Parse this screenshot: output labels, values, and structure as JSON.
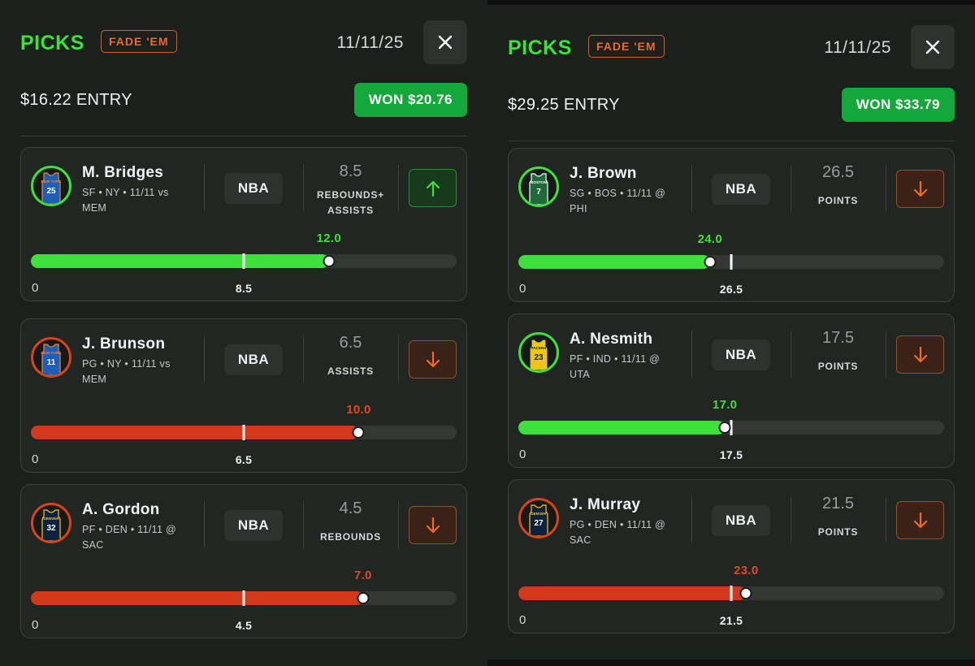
{
  "panels": [
    {
      "title": "PICKS",
      "badge": "FADE 'EM",
      "date": "11/11/25",
      "close_icon": "close-icon",
      "entry": "$16.22 ENTRY",
      "won": "WON $20.76",
      "picks": [
        {
          "name": "M. Bridges",
          "info": "SF • NY • 11/11 vs MEM",
          "league": "NBA",
          "line": "8.5",
          "stat": [
            "REBOUNDS+",
            "ASSISTS"
          ],
          "direction": "up",
          "actual": "12.0",
          "result": "hit",
          "jersey_number": "25",
          "jersey_text": "NEW YORK",
          "jersey_color": "#1d5fb7",
          "jersey_trim": "#f58426",
          "ring_color": "#3ee03a",
          "actual_fraction": 0.7,
          "line_fraction": 0.5,
          "axis_zero": "0",
          "axis_line": "8.5"
        },
        {
          "name": "J. Brunson",
          "info": "PG • NY • 11/11 vs MEM",
          "league": "NBA",
          "line": "6.5",
          "stat": [
            "ASSISTS"
          ],
          "direction": "down",
          "actual": "10.0",
          "result": "miss",
          "jersey_number": "11",
          "jersey_text": "NEW YORK",
          "jersey_color": "#1d5fb7",
          "jersey_trim": "#f58426",
          "ring_color": "#d9431c",
          "actual_fraction": 0.77,
          "line_fraction": 0.5,
          "axis_zero": "0",
          "axis_line": "6.5"
        },
        {
          "name": "A. Gordon",
          "info": "PF • DEN • 11/11 @ SAC",
          "league": "NBA",
          "line": "4.5",
          "stat": [
            "REBOUNDS"
          ],
          "direction": "down",
          "actual": "7.0",
          "result": "miss",
          "jersey_number": "32",
          "jersey_text": "DENVER",
          "jersey_color": "#0e2240",
          "jersey_trim": "#fec524",
          "ring_color": "#d9431c",
          "actual_fraction": 0.78,
          "line_fraction": 0.5,
          "axis_zero": "0",
          "axis_line": "4.5"
        }
      ]
    },
    {
      "title": "PICKS",
      "badge": "FADE 'EM",
      "date": "11/11/25",
      "close_icon": "close-icon",
      "entry": "$29.25 ENTRY",
      "won": "WON $33.79",
      "picks": [
        {
          "name": "J. Brown",
          "info": "SG • BOS • 11/11 @ PHI",
          "league": "NBA",
          "line": "26.5",
          "stat": [
            "POINTS"
          ],
          "direction": "down",
          "actual": "24.0",
          "result": "hit",
          "jersey_number": "7",
          "jersey_text": "BOSTON",
          "jersey_color": "#1f6a3c",
          "jersey_trim": "#ffffff",
          "ring_color": "#3ee03a",
          "actual_fraction": 0.45,
          "line_fraction": 0.5,
          "axis_zero": "0",
          "axis_line": "26.5"
        },
        {
          "name": "A. Nesmith",
          "info": "PF • IND • 11/11 @ UTA",
          "league": "NBA",
          "line": "17.5",
          "stat": [
            "POINTS"
          ],
          "direction": "down",
          "actual": "17.0",
          "result": "hit",
          "jersey_number": "23",
          "jersey_text": "PACERS",
          "jersey_color": "#f2c417",
          "jersey_trim": "#0c2340",
          "ring_color": "#3ee03a",
          "actual_fraction": 0.485,
          "line_fraction": 0.5,
          "axis_zero": "0",
          "axis_line": "17.5"
        },
        {
          "name": "J. Murray",
          "info": "PG • DEN • 11/11 @ SAC",
          "league": "NBA",
          "line": "21.5",
          "stat": [
            "POINTS"
          ],
          "direction": "down",
          "actual": "23.0",
          "result": "miss",
          "jersey_number": "27",
          "jersey_text": "DENVER",
          "jersey_color": "#0e2240",
          "jersey_trim": "#fec524",
          "ring_color": "#d9431c",
          "actual_fraction": 0.535,
          "line_fraction": 0.5,
          "axis_zero": "0",
          "axis_line": "21.5"
        }
      ]
    }
  ]
}
